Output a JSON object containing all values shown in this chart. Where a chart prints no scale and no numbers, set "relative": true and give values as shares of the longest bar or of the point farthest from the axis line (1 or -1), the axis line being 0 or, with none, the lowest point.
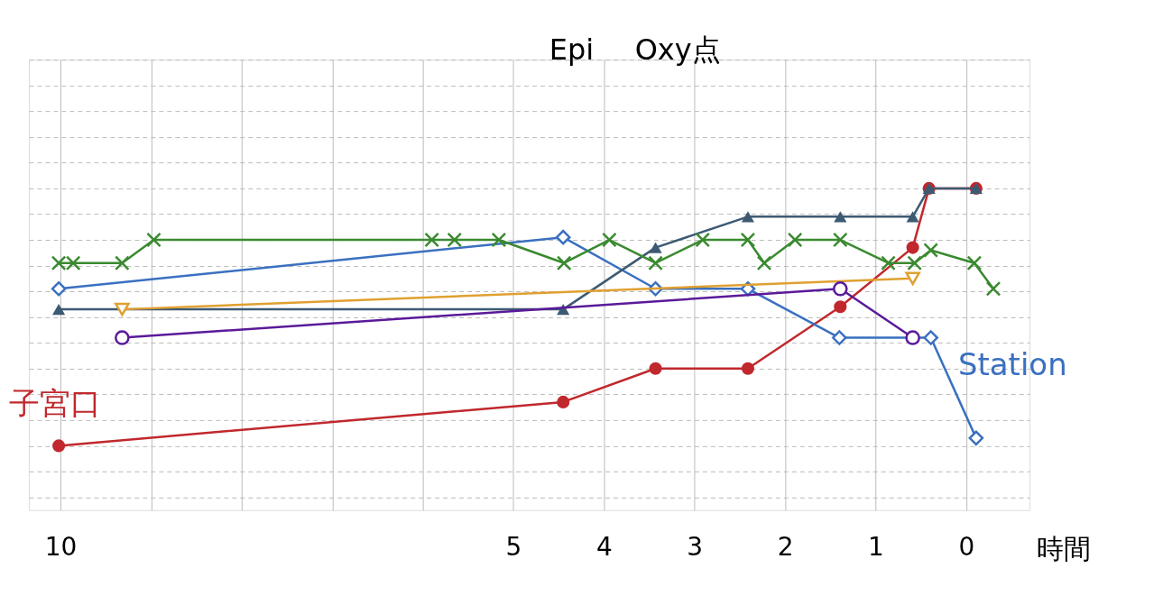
{
  "chart_data": {
    "type": "line",
    "relative": true,
    "xlabel": "時間",
    "xlim": [
      10.35,
      -0.7
    ],
    "xticks": [
      10,
      {
        "value": 9,
        "label": null
      },
      {
        "value": 8,
        "label": null
      },
      {
        "value": 7,
        "label": null
      },
      {
        "value": 6,
        "label": null
      },
      5,
      4,
      3,
      2,
      1,
      0
    ],
    "grid": true,
    "line_style": "solid",
    "annotations": [
      "Epi",
      "Oxy点"
    ],
    "series": [
      {
        "name": "子宮口",
        "color": "#c0282d",
        "marker": "circle",
        "x": [
          10.02,
          4.45,
          3.43,
          2.41,
          1.39,
          0.59,
          0.41,
          -0.11
        ],
        "values": [
          0,
          0.17,
          0.3,
          0.3,
          0.54,
          0.77,
          1,
          1
        ]
      },
      {
        "name": "Station",
        "color": "#3a70c0",
        "marker": "diamond",
        "x": [
          10.02,
          4.45,
          3.43,
          2.41,
          1.4,
          0.39,
          -0.11
        ],
        "values": [
          0.61,
          0.81,
          0.61,
          0.61,
          0.42,
          0.42,
          0.03
        ]
      },
      {
        "color": "#3d5a73",
        "marker": "triangle",
        "x": [
          10.02,
          4.45,
          3.43,
          2.41,
          1.39,
          0.59,
          0.41,
          -0.11
        ],
        "values": [
          0.53,
          0.53,
          0.77,
          0.89,
          0.89,
          0.89,
          1,
          1
        ]
      },
      {
        "color": "#e0a030",
        "marker": "triangle-down",
        "x": [
          9.32,
          0.59
        ],
        "values": [
          0.53,
          0.65
        ]
      },
      {
        "color": "#5a1a9a",
        "marker": "circle-open",
        "x": [
          9.32,
          1.39,
          0.59
        ],
        "values": [
          0.42,
          0.61,
          0.42
        ]
      },
      {
        "color": "#3a8a30",
        "marker": "cross",
        "x": [
          10.02,
          9.86,
          9.32,
          8.97,
          5.9,
          5.65,
          5.16,
          4.44,
          3.94,
          3.43,
          2.91,
          2.41,
          2.23,
          1.89,
          1.39,
          0.86,
          0.57,
          0.39,
          -0.09,
          -0.3
        ],
        "values": [
          0.71,
          0.71,
          0.71,
          0.8,
          0.8,
          0.8,
          0.8,
          0.71,
          0.8,
          0.71,
          0.8,
          0.8,
          0.71,
          0.8,
          0.8,
          0.71,
          0.71,
          0.76,
          0.71,
          0.61
        ]
      }
    ]
  }
}
